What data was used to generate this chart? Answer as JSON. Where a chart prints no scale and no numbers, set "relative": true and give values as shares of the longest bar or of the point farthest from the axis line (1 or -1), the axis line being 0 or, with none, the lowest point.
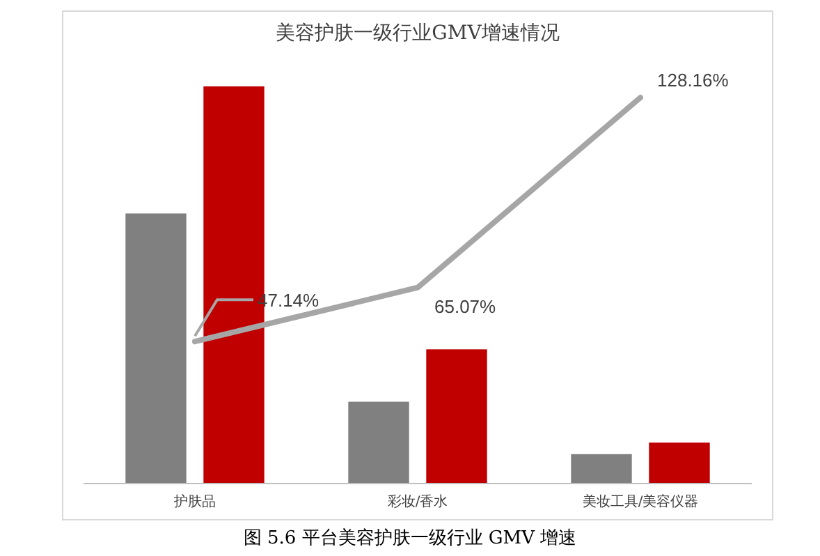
{
  "chart_data": [
    {
      "type": "bar",
      "title": "美容护肤一级行业GMV增速情况",
      "categories": [
        "护肤品",
        "彩妆/香水",
        "美妆工具/美容仪器"
      ],
      "relative": true,
      "series": [
        {
          "color": "#808080",
          "values": [
            0.68,
            0.206,
            0.074
          ]
        },
        {
          "color": "#c00000",
          "values": [
            1,
            0.338,
            0.103
          ]
        }
      ],
      "annotations": [
        "图 5.6 平台美容护肤一级行业 GMV 增速"
      ]
    },
    {
      "type": "line",
      "categories": [
        null,
        null,
        null
      ],
      "series": [
        {
          "color": "#a6a6a6",
          "values": [
            47.14,
            65.07,
            128.16
          ],
          "value_labels": [
            "47.14%",
            "65.07%",
            "128.16%"
          ]
        }
      ]
    }
  ]
}
